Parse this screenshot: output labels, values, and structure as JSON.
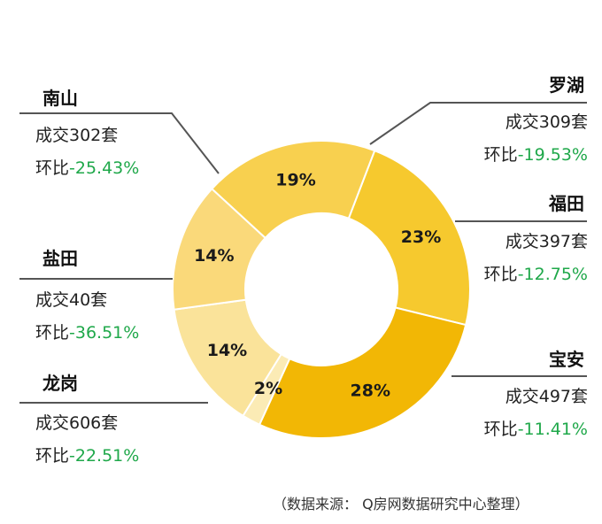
{
  "chart_data": {
    "type": "pie",
    "style": "donut",
    "slices": [
      {
        "label": "宝安",
        "value": 23,
        "display": "23%",
        "color": "#F6C92E"
      },
      {
        "label": "龙岗",
        "value": 28,
        "display": "28%",
        "color": "#F2B705"
      },
      {
        "label": "盐田",
        "value": 2,
        "display": "2%",
        "color": "#FBEBB5"
      },
      {
        "label": "南山",
        "value": 14,
        "display": "14%",
        "color": "#FAE39A"
      },
      {
        "label": "罗湖",
        "value": 14,
        "display": "14%",
        "color": "#FAD97A"
      },
      {
        "label": "福田",
        "value": 19,
        "display": "19%",
        "color": "#F8D04F"
      }
    ]
  },
  "districts": {
    "nanshan": {
      "name": "南山",
      "deals": "成交302套",
      "mom_prefix": "环比",
      "mom": "-25.43%"
    },
    "luohu": {
      "name": "罗湖",
      "deals": "成交309套",
      "mom_prefix": "环比",
      "mom": "-19.53%"
    },
    "futian": {
      "name": "福田",
      "deals": "成交397套",
      "mom_prefix": "环比",
      "mom": "-12.75%"
    },
    "yantian": {
      "name": "盐田",
      "deals": "成交40套",
      "mom_prefix": "环比",
      "mom": "-36.51%"
    },
    "longgang": {
      "name": "龙岗",
      "deals": "成交606套",
      "mom_prefix": "环比",
      "mom": "-22.51%"
    },
    "baoan": {
      "name": "宝安",
      "deals": "成交497套",
      "mom_prefix": "环比",
      "mom": "-11.41%"
    }
  },
  "source_note": "（数据来源： Q房网数据研究中心整理）",
  "colors": {
    "leader_line": "#555555",
    "growth_text": "#1FA84A"
  }
}
